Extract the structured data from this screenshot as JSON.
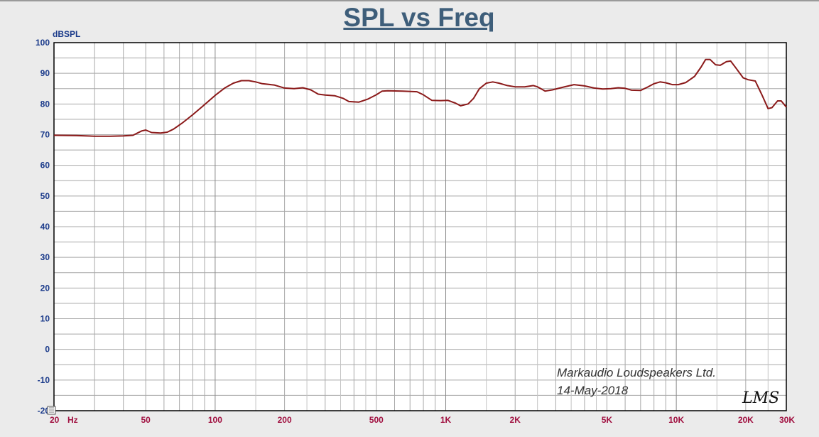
{
  "title": "SPL vs Freq",
  "colors": {
    "curve": "#8b1a1a",
    "yTicks": "#1a3a8a",
    "xTicks": "#a01040",
    "title": "#3e5e7a"
  },
  "annotation": {
    "company": "Markaudio Loudspeakers Ltd.",
    "date": "14-May-2018",
    "logo": "LMS"
  },
  "chart_data": {
    "type": "line",
    "title": "SPL vs Freq",
    "xlabel": "Hz",
    "ylabel": "dBSPL",
    "xscale": "log",
    "xlim": [
      20,
      30000
    ],
    "ylim": [
      -20,
      100
    ],
    "grid": true,
    "yticks": [
      100,
      90,
      80,
      70,
      60,
      50,
      40,
      30,
      20,
      10,
      0,
      -10,
      -20
    ],
    "xtick_labels": [
      {
        "v": 20,
        "label": "20"
      },
      {
        "v": 50,
        "label": "50"
      },
      {
        "v": 100,
        "label": "100"
      },
      {
        "v": 200,
        "label": "200"
      },
      {
        "v": 500,
        "label": "500"
      },
      {
        "v": 1000,
        "label": "1K"
      },
      {
        "v": 2000,
        "label": "2K"
      },
      {
        "v": 5000,
        "label": "5K"
      },
      {
        "v": 10000,
        "label": "10K"
      },
      {
        "v": 20000,
        "label": "20K"
      },
      {
        "v": 30000,
        "label": "30K"
      }
    ],
    "series": [
      {
        "points": [
          [
            20,
            69.8
          ],
          [
            25,
            69.7
          ],
          [
            30,
            69.5
          ],
          [
            35,
            69.5
          ],
          [
            40,
            69.6
          ],
          [
            44,
            69.8
          ],
          [
            48,
            71.2
          ],
          [
            50,
            71.5
          ],
          [
            53,
            70.7
          ],
          [
            58,
            70.5
          ],
          [
            62,
            70.8
          ],
          [
            66,
            71.8
          ],
          [
            72,
            73.8
          ],
          [
            80,
            76.5
          ],
          [
            90,
            79.8
          ],
          [
            100,
            82.8
          ],
          [
            110,
            85.2
          ],
          [
            120,
            86.8
          ],
          [
            130,
            87.6
          ],
          [
            140,
            87.6
          ],
          [
            150,
            87.2
          ],
          [
            160,
            86.6
          ],
          [
            180,
            86.2
          ],
          [
            200,
            85.2
          ],
          [
            220,
            85.0
          ],
          [
            240,
            85.3
          ],
          [
            260,
            84.6
          ],
          [
            280,
            83.2
          ],
          [
            300,
            82.9
          ],
          [
            330,
            82.7
          ],
          [
            360,
            81.8
          ],
          [
            380,
            80.8
          ],
          [
            420,
            80.6
          ],
          [
            460,
            81.6
          ],
          [
            500,
            83.0
          ],
          [
            530,
            84.2
          ],
          [
            560,
            84.3
          ],
          [
            650,
            84.2
          ],
          [
            750,
            84.0
          ],
          [
            800,
            83.0
          ],
          [
            870,
            81.2
          ],
          [
            950,
            81.1
          ],
          [
            1020,
            81.2
          ],
          [
            1100,
            80.3
          ],
          [
            1160,
            79.4
          ],
          [
            1250,
            80.0
          ],
          [
            1320,
            81.8
          ],
          [
            1400,
            85.0
          ],
          [
            1500,
            86.8
          ],
          [
            1600,
            87.2
          ],
          [
            1700,
            86.8
          ],
          [
            1850,
            86.0
          ],
          [
            2000,
            85.6
          ],
          [
            2200,
            85.6
          ],
          [
            2400,
            86.0
          ],
          [
            2500,
            85.6
          ],
          [
            2700,
            84.2
          ],
          [
            2900,
            84.6
          ],
          [
            3200,
            85.4
          ],
          [
            3600,
            86.3
          ],
          [
            4000,
            85.9
          ],
          [
            4400,
            85.2
          ],
          [
            4800,
            84.9
          ],
          [
            5200,
            85.0
          ],
          [
            5600,
            85.3
          ],
          [
            6000,
            85.1
          ],
          [
            6400,
            84.5
          ],
          [
            7000,
            84.4
          ],
          [
            7500,
            85.5
          ],
          [
            8000,
            86.6
          ],
          [
            8500,
            87.2
          ],
          [
            9000,
            86.9
          ],
          [
            9600,
            86.3
          ],
          [
            10200,
            86.3
          ],
          [
            11000,
            87.0
          ],
          [
            12000,
            89.0
          ],
          [
            12800,
            92.0
          ],
          [
            13400,
            94.5
          ],
          [
            14000,
            94.5
          ],
          [
            14800,
            92.8
          ],
          [
            15500,
            92.6
          ],
          [
            16500,
            93.8
          ],
          [
            17200,
            94.0
          ],
          [
            18200,
            91.6
          ],
          [
            19500,
            88.5
          ],
          [
            20500,
            87.9
          ],
          [
            22000,
            87.5
          ],
          [
            23500,
            83.0
          ],
          [
            25000,
            78.5
          ],
          [
            26000,
            78.8
          ],
          [
            27500,
            81.0
          ],
          [
            28500,
            81.0
          ],
          [
            30000,
            79.0
          ]
        ]
      }
    ]
  }
}
